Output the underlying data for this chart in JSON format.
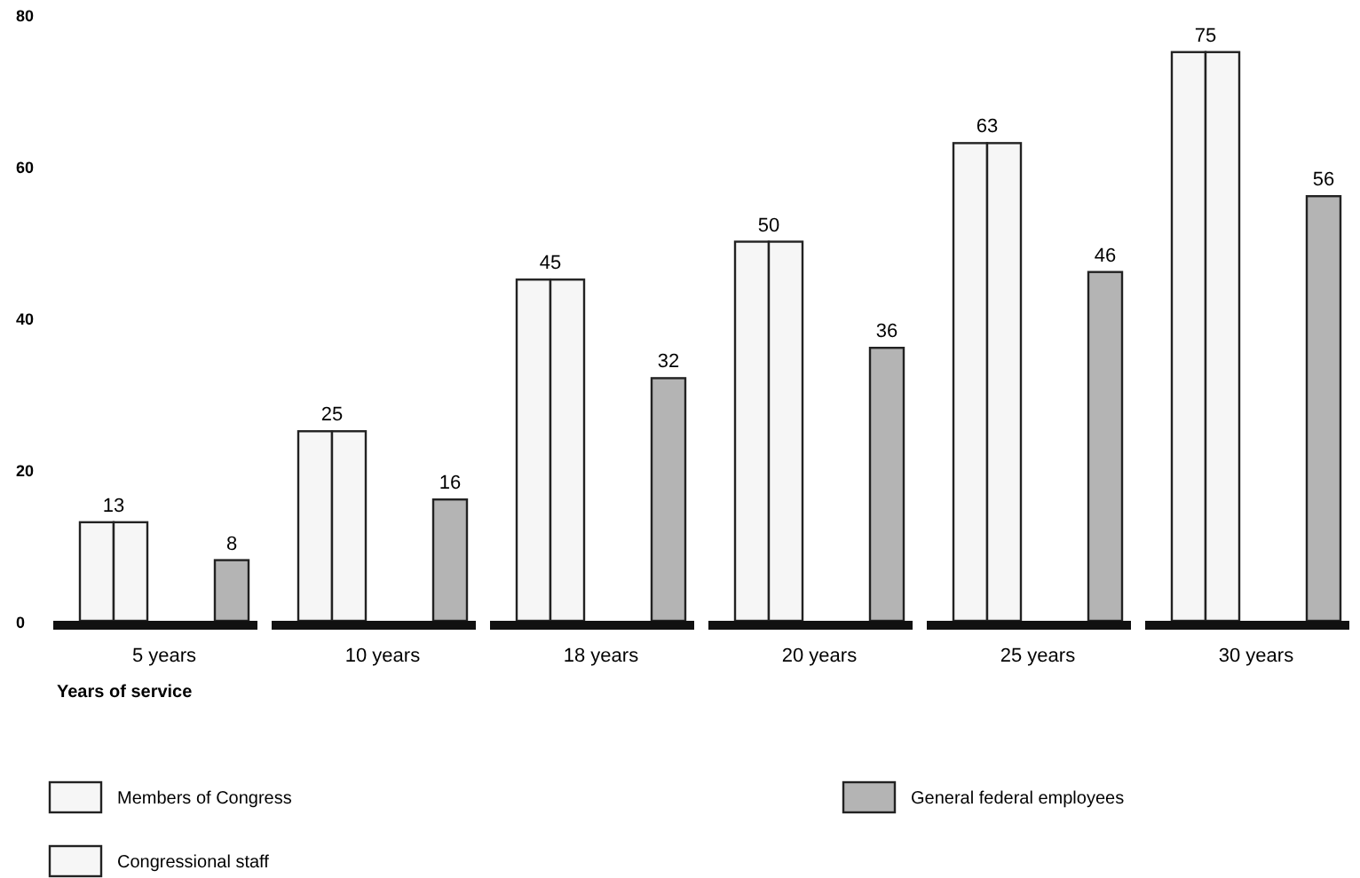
{
  "chart_data": {
    "type": "bar",
    "xlabel": "Years of service",
    "categories": [
      "5 years",
      "10 years",
      "18 years",
      "20 years",
      "25 years",
      "30 years"
    ],
    "series": [
      {
        "name": "Members of Congress",
        "color": "#f6f6f6",
        "values": [
          13,
          25,
          45,
          50,
          63,
          75
        ],
        "value_labels": [
          "13",
          "25",
          "45",
          "50",
          "63",
          "75"
        ]
      },
      {
        "name": "Congressional staff",
        "color": "#f6f6f6",
        "values": [
          13,
          25,
          45,
          50,
          63,
          75
        ]
      },
      {
        "name": "General federal employees",
        "color": "#b4b4b4",
        "values": [
          8,
          16,
          32,
          36,
          46,
          56
        ],
        "value_labels": [
          "8",
          "16",
          "32",
          "36",
          "46",
          "56"
        ]
      }
    ],
    "ylim": [
      0,
      80
    ],
    "yticks": [
      0,
      20,
      40,
      60,
      80
    ],
    "grid": false,
    "legend": "bottom"
  }
}
